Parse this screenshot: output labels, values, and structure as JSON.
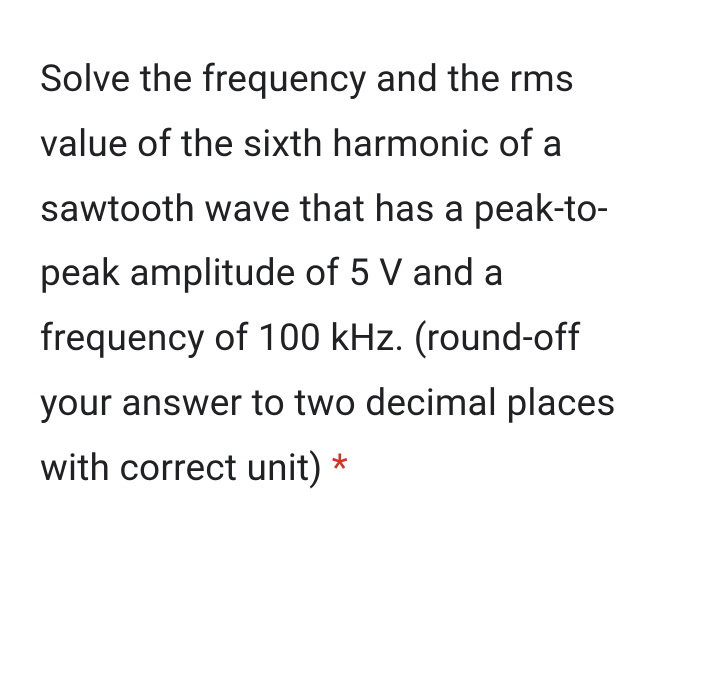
{
  "question": {
    "text": "Solve the frequency and the rms value of the sixth harmonic of a sawtooth wave that has a peak-to-peak amplitude of 5 V and a frequency of 100 kHz. (round-off your answer to two decimal places with correct unit) ",
    "required_marker": "*",
    "text_color": "#202124",
    "asterisk_color": "#d93025",
    "font_size": 37,
    "line_height": 1.75,
    "background_color": "#ffffff"
  }
}
